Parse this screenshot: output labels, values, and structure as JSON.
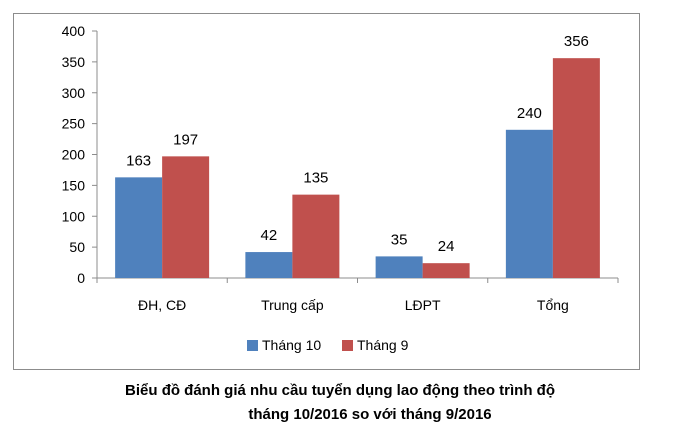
{
  "caption": {
    "line1": "Biểu đồ đánh giá nhu cầu tuyển dụng lao động theo trình độ",
    "line2": "tháng 10/2016 so với tháng 9/2016"
  },
  "chart_data": {
    "type": "bar",
    "categories": [
      "ĐH, CĐ",
      "Trung cấp",
      "LĐPT",
      "Tổng"
    ],
    "series": [
      {
        "name": "Tháng 10",
        "values": [
          163,
          42,
          35,
          240
        ],
        "color": "#4f81bd"
      },
      {
        "name": "Tháng 9",
        "values": [
          197,
          135,
          24,
          356
        ],
        "color": "#c0504d"
      }
    ],
    "ylim": [
      0,
      400
    ],
    "yticks": [
      0,
      50,
      100,
      150,
      200,
      250,
      300,
      350,
      400
    ],
    "grid": false,
    "legend_position": "bottom",
    "data_labels": true
  }
}
